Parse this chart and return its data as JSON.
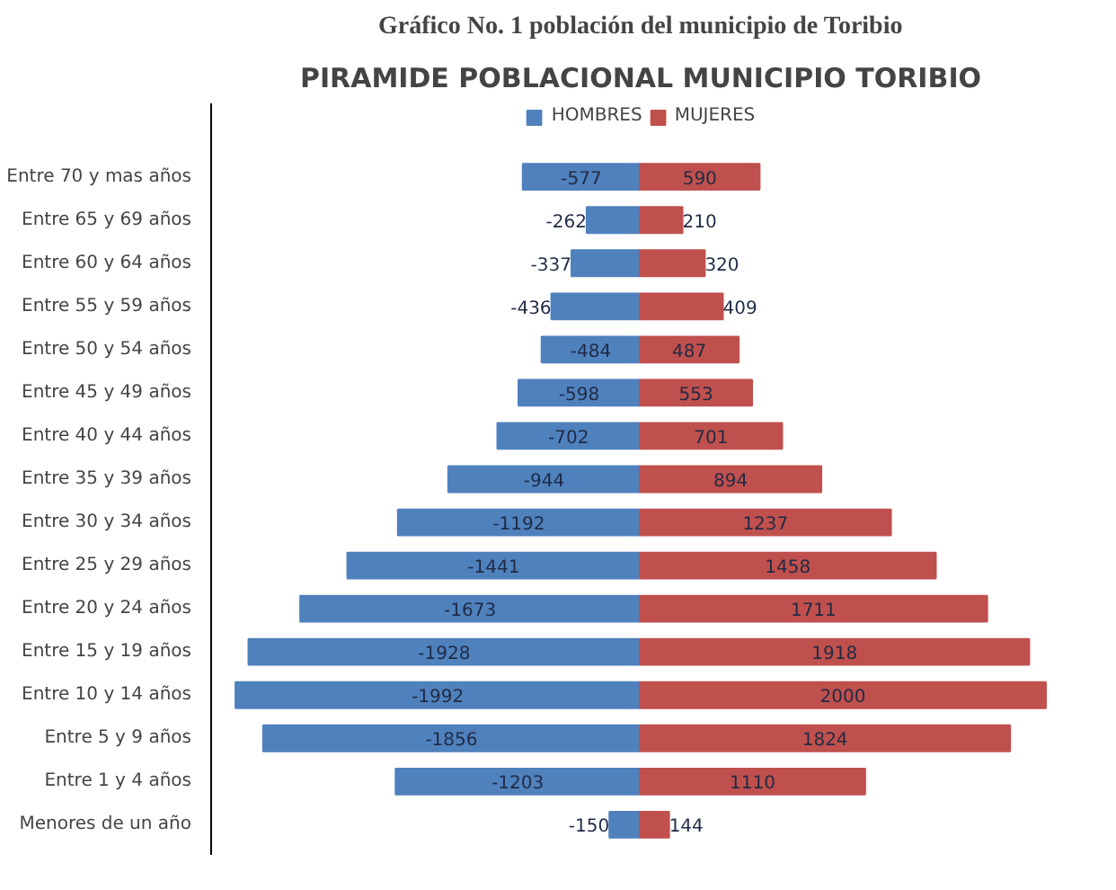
{
  "chart_data": {
    "type": "bar",
    "orientation": "horizontal",
    "title": "Gráfico No. 1 población del municipio de Toribio",
    "subtitle": "PIRAMIDE POBLACIONAL MUNICIPIO TORIBIO",
    "categories": [
      "Entre 70 y mas años",
      "Entre 65 y 69 años",
      "Entre 60 y 64 años",
      "Entre 55 y 59 años",
      "Entre 50 y 54 años",
      "Entre 45 y 49 años",
      "Entre 40 y 44 años",
      "Entre 35 y 39 años",
      "Entre 30 y 34 años",
      "Entre 25 y 29 años",
      "Entre 20 y 24 años",
      "Entre 15 y 19 años",
      "Entre 10 y 14 años",
      "Entre 5 y 9 años",
      "Entre 1 y 4 años",
      "Menores de un año"
    ],
    "series": [
      {
        "name": "HOMBRES",
        "color": "#4f81bd",
        "values": [
          -577,
          -262,
          -337,
          -436,
          -484,
          -598,
          -702,
          -944,
          -1192,
          -1441,
          -1673,
          -1928,
          -1992,
          -1856,
          -1203,
          -150
        ]
      },
      {
        "name": "MUJERES",
        "color": "#c0504d",
        "values": [
          590,
          210,
          320,
          409,
          487,
          553,
          701,
          894,
          1237,
          1458,
          1711,
          1918,
          2000,
          1824,
          1110,
          144
        ]
      }
    ],
    "legend": "top",
    "grid": false,
    "tick_labels": "y",
    "stacked": true,
    "data_labels": true
  }
}
